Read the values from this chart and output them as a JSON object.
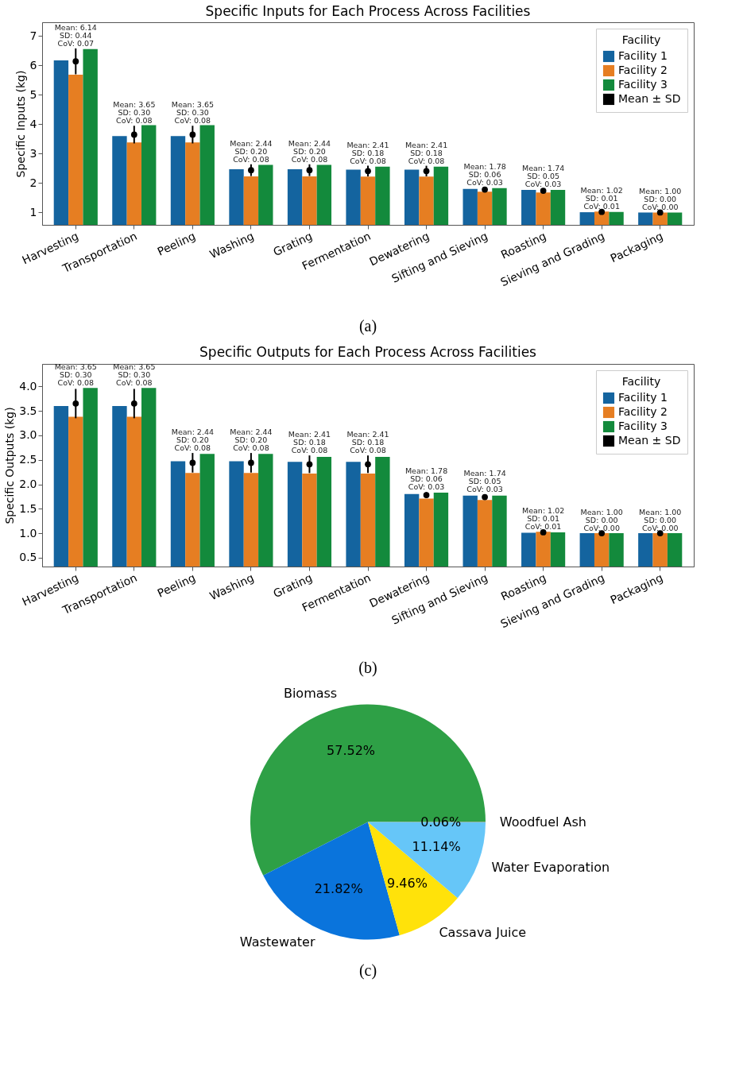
{
  "chart_data": [
    {
      "type": "bar",
      "title": "Specific Inputs for Each Process Across Facilities",
      "ylabel": "Specific Inputs (kg)",
      "categories": [
        "Harvesting",
        "Transportation",
        "Peeling",
        "Washing",
        "Grating",
        "Fermentation",
        "Dewatering",
        "Sifting and Sieving",
        "Roasting",
        "Sieving and Grading",
        "Packaging"
      ],
      "series": [
        {
          "name": "Facility 1",
          "color": "#14649f",
          "values": [
            6.17,
            3.6,
            3.6,
            2.47,
            2.47,
            2.46,
            2.46,
            1.8,
            1.77,
            1.01,
            1.0
          ]
        },
        {
          "name": "Facility 2",
          "color": "#e67e22",
          "values": [
            5.69,
            3.38,
            3.38,
            2.23,
            2.23,
            2.22,
            2.22,
            1.71,
            1.68,
            1.03,
            1.0
          ]
        },
        {
          "name": "Facility 3",
          "color": "#138a3c",
          "values": [
            6.56,
            3.97,
            3.97,
            2.62,
            2.62,
            2.56,
            2.56,
            1.83,
            1.77,
            1.02,
            1.0
          ]
        },
        {
          "name": "Mean ± SD",
          "type": "scatter",
          "color": "#000000",
          "marker": "circle",
          "x": [
            "Harvesting",
            "Transportation",
            "Peeling",
            "Washing",
            "Grating",
            "Fermentation",
            "Dewatering",
            "Sifting and Sieving",
            "Roasting",
            "Sieving and Grading",
            "Packaging"
          ],
          "values": [
            6.14,
            3.65,
            3.65,
            2.44,
            2.44,
            2.41,
            2.41,
            1.78,
            1.74,
            1.02,
            1.0
          ],
          "errors": [
            0.44,
            0.3,
            0.3,
            0.2,
            0.2,
            0.18,
            0.18,
            0.06,
            0.05,
            null,
            0.0
          ]
        }
      ],
      "ylim": [
        0.58,
        7.47
      ],
      "yticks": [
        1,
        2,
        3,
        4,
        5,
        6,
        7
      ],
      "legend": "top right",
      "legend_title": "Facility",
      "annotations": [
        {
          "text": "Mean: 6.14\nSD: 0.44\nCoV: 0.07",
          "x": "Harvesting",
          "y": 6.58
        },
        {
          "text": "Mean: 3.65\nSD: 0.30\nCoV: 0.08",
          "x": "Transportation",
          "y": 3.97
        },
        {
          "text": "Mean: 3.65\nSD: 0.30\nCoV: 0.08",
          "x": "Peeling",
          "y": 3.97
        },
        {
          "text": "Mean: 2.44\nSD: 0.20\nCoV: 0.08",
          "x": "Washing",
          "y": 2.64
        },
        {
          "text": "Mean: 2.44\nSD: 0.20\nCoV: 0.08",
          "x": "Grating",
          "y": 2.64
        },
        {
          "text": "Mean: 2.41\nSD: 0.18\nCoV: 0.08",
          "x": "Fermentation",
          "y": 2.59
        },
        {
          "text": "Mean: 2.41\nSD: 0.18\nCoV: 0.08",
          "x": "Dewatering",
          "y": 2.59
        },
        {
          "text": "Mean: 1.78\nSD: 0.06\nCoV: 0.03",
          "x": "Sifting and Sieving",
          "y": 1.84
        },
        {
          "text": "Mean: 1.74\nSD: 0.05\nCoV: 0.03",
          "x": "Roasting",
          "y": 1.79
        },
        {
          "text": "Mean: 1.02\nSD: 0.01\nCoV: 0.01",
          "x": "Sieving and Grading",
          "y": 1.03
        },
        {
          "text": "Mean: 1.00\nSD: 0.00\nCoV: 0.00",
          "x": "Packaging",
          "y": 1.0
        },
        "(a)"
      ]
    },
    {
      "type": "bar",
      "title": "Specific Outputs for Each Process Across Facilities",
      "ylabel": "Specific Outputs (kg)",
      "categories": [
        "Harvesting",
        "Transportation",
        "Peeling",
        "Washing",
        "Grating",
        "Fermentation",
        "Dewatering",
        "Sifting and Sieving",
        "Roasting",
        "Sieving and Grading",
        "Packaging"
      ],
      "series": [
        {
          "name": "Facility 1",
          "color": "#14649f",
          "values": [
            3.6,
            3.6,
            2.47,
            2.47,
            2.46,
            2.46,
            1.8,
            1.77,
            1.01,
            1.0,
            1.0
          ]
        },
        {
          "name": "Facility 2",
          "color": "#e67e22",
          "values": [
            3.38,
            3.38,
            2.23,
            2.23,
            2.22,
            2.22,
            1.71,
            1.68,
            1.03,
            1.0,
            1.0
          ]
        },
        {
          "name": "Facility 3",
          "color": "#138a3c",
          "values": [
            3.97,
            3.97,
            2.62,
            2.62,
            2.56,
            2.56,
            1.83,
            1.77,
            1.02,
            1.0,
            1.0
          ]
        },
        {
          "name": "Mean ± SD",
          "type": "scatter",
          "color": "#000000",
          "marker": "circle",
          "x": [
            "Harvesting",
            "Transportation",
            "Peeling",
            "Washing",
            "Grating",
            "Fermentation",
            "Dewatering",
            "Sifting and Sieving",
            "Roasting",
            "Sieving and Grading",
            "Packaging"
          ],
          "values": [
            3.65,
            3.65,
            2.44,
            2.44,
            2.41,
            2.41,
            1.78,
            1.74,
            1.02,
            1.0,
            1.0
          ],
          "errors": [
            0.3,
            0.3,
            0.2,
            0.2,
            0.18,
            0.18,
            0.06,
            0.05,
            null,
            0.0,
            0.0
          ]
        }
      ],
      "ylim": [
        0.32,
        4.46
      ],
      "yticks": [
        {
          "value": 0.5,
          "label": "0.5"
        },
        {
          "value": 1,
          "label": "1.0"
        },
        {
          "value": 1.5,
          "label": "1.5"
        },
        {
          "value": 2,
          "label": "2.0"
        },
        {
          "value": 2.5,
          "label": "2.5"
        },
        {
          "value": 3,
          "label": "3.0"
        },
        {
          "value": 3.5,
          "label": "3.5"
        },
        {
          "value": 4,
          "label": "4.0"
        }
      ],
      "legend": "top right",
      "legend_title": "Facility",
      "annotations": [
        {
          "text": "Mean: 3.65\nSD: 0.30\nCoV: 0.08",
          "x": "Harvesting",
          "y": 3.97
        },
        {
          "text": "Mean: 3.65\nSD: 0.30\nCoV: 0.08",
          "x": "Transportation",
          "y": 3.97
        },
        {
          "text": "Mean: 2.44\nSD: 0.20\nCoV: 0.08",
          "x": "Peeling",
          "y": 2.64
        },
        {
          "text": "Mean: 2.44\nSD: 0.20\nCoV: 0.08",
          "x": "Washing",
          "y": 2.64
        },
        {
          "text": "Mean: 2.41\nSD: 0.18\nCoV: 0.08",
          "x": "Grating",
          "y": 2.59
        },
        {
          "text": "Mean: 2.41\nSD: 0.18\nCoV: 0.08",
          "x": "Fermentation",
          "y": 2.59
        },
        {
          "text": "Mean: 1.78\nSD: 0.06\nCoV: 0.03",
          "x": "Dewatering",
          "y": 1.84
        },
        {
          "text": "Mean: 1.74\nSD: 0.05\nCoV: 0.03",
          "x": "Sifting and Sieving",
          "y": 1.79
        },
        {
          "text": "Mean: 1.02\nSD: 0.01\nCoV: 0.01",
          "x": "Roasting",
          "y": 1.03
        },
        {
          "text": "Mean: 1.00\nSD: 0.00\nCoV: 0.00",
          "x": "Sieving and Grading",
          "y": 1.0
        },
        {
          "text": "Mean: 1.00\nSD: 0.00\nCoV: 0.00",
          "x": "Packaging",
          "y": 1.0
        },
        "(b)"
      ]
    },
    {
      "type": "pie",
      "categories": [
        "Biomass",
        "Wastewater",
        "Cassava Juice",
        "Water Evaporation",
        "Woodfuel Ash"
      ],
      "values": [
        57.52,
        21.82,
        9.46,
        11.14,
        0.06
      ],
      "colors": [
        "#2ea046",
        "#0a74dc",
        "#ffe20a",
        "#66c6f8",
        "#9a9a9a"
      ],
      "value_labels": [
        "57.52%",
        "21.82%",
        "9.46%",
        "11.14%",
        "0.06%"
      ],
      "annotations": [
        "(c)"
      ]
    }
  ]
}
